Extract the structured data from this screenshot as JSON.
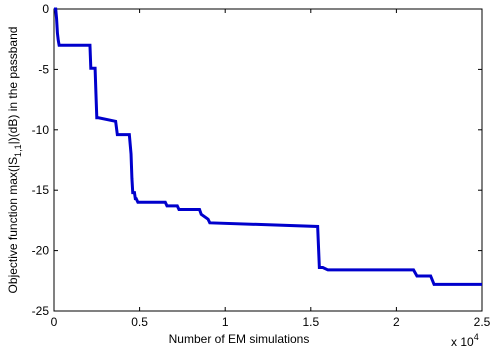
{
  "chart_data": {
    "type": "line",
    "title": "",
    "xlabel": "Number of EM simulations",
    "ylabel_prefix": "Objective function max(|S",
    "ylabel_sub": "1,1",
    "ylabel_suffix": "|)(dB) in the passband",
    "x_multiplier_base": "x 10",
    "x_multiplier_exp": "4",
    "xlim": [
      0,
      2.5
    ],
    "ylim": [
      -25,
      0
    ],
    "x_ticks": [
      0,
      0.5,
      1,
      1.5,
      2,
      2.5
    ],
    "x_tick_labels": [
      "0",
      "0.5",
      "1",
      "1.5",
      "2",
      "2.5"
    ],
    "y_ticks": [
      0,
      -5,
      -10,
      -15,
      -20,
      -25
    ],
    "y_tick_labels": [
      "0",
      "-5",
      "-10",
      "-15",
      "-20",
      "-25"
    ],
    "grid": false,
    "line_color": "#0000cc",
    "series": [
      {
        "x": [
          0,
          0.01,
          0.015,
          0.02,
          0.025,
          0.03,
          0.21,
          0.215,
          0.24,
          0.245,
          0.25,
          0.26,
          0.36,
          0.37,
          0.44,
          0.45,
          0.455,
          0.46,
          0.47,
          0.475,
          0.48,
          0.49,
          0.5,
          0.65,
          0.66,
          0.72,
          0.73,
          0.85,
          0.86,
          0.9,
          0.91,
          1.54,
          1.55,
          1.57,
          1.6,
          1.62,
          2.1,
          2.12,
          2.2,
          2.22,
          2.5
        ],
        "y": [
          0,
          0,
          -0.8,
          -2.0,
          -2.6,
          -3.0,
          -3.0,
          -4.9,
          -4.9,
          -7.0,
          -9.0,
          -9.0,
          -9.3,
          -10.4,
          -10.4,
          -12.0,
          -14.0,
          -15.2,
          -15.2,
          -15.7,
          -15.7,
          -16.0,
          -16.0,
          -16.0,
          -16.3,
          -16.3,
          -16.6,
          -16.6,
          -17.0,
          -17.4,
          -17.7,
          -18.0,
          -21.4,
          -21.4,
          -21.6,
          -21.6,
          -21.6,
          -22.1,
          -22.1,
          -22.8,
          -22.8
        ]
      }
    ]
  }
}
